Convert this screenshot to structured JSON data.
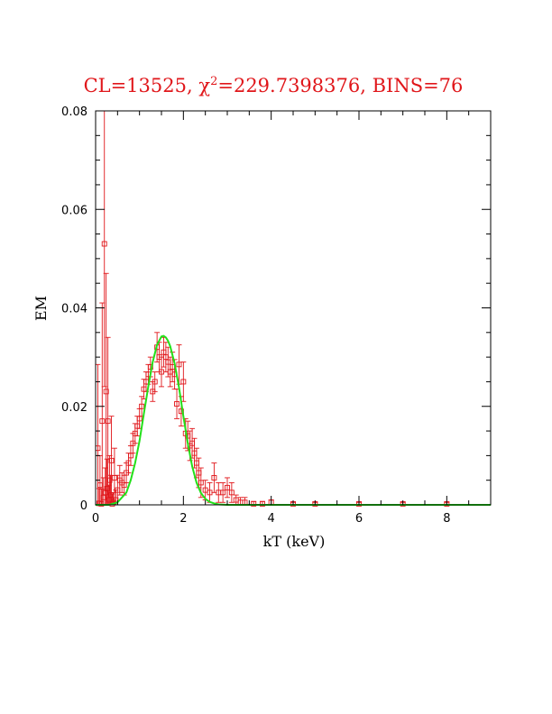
{
  "chart_data": {
    "type": "scatter",
    "title_prefix": "CL=13525, ",
    "title_chi": "χ",
    "title_sup": "2",
    "title_rest": "=229.7398376, BINS=76",
    "xlabel": "kT (keV)",
    "ylabel": "EM",
    "xlim": [
      0,
      9
    ],
    "ylim": [
      0,
      0.08
    ],
    "x_ticks": [
      0,
      2,
      4,
      6,
      8
    ],
    "x_tick_labels": [
      "0",
      "2",
      "4",
      "6",
      "8"
    ],
    "y_ticks": [
      0,
      0.02,
      0.04,
      0.06,
      0.08
    ],
    "y_tick_labels": [
      "0",
      "0.02",
      "0.04",
      "0.06",
      "0.08"
    ],
    "grid": false,
    "colors": {
      "data": "#e0161a",
      "model": "#22e01a",
      "axes": "#000000"
    },
    "series": [
      {
        "kind": "data-with-errors",
        "x": [
          0.05,
          0.08,
          0.1,
          0.13,
          0.15,
          0.18,
          0.2,
          0.22,
          0.24,
          0.26,
          0.28,
          0.3,
          0.32,
          0.34,
          0.36,
          0.38,
          0.4,
          0.43,
          0.46,
          0.5,
          0.55,
          0.6,
          0.65,
          0.7,
          0.75,
          0.8,
          0.85,
          0.9,
          0.95,
          1.0,
          1.05,
          1.1,
          1.15,
          1.2,
          1.25,
          1.3,
          1.35,
          1.4,
          1.45,
          1.5,
          1.55,
          1.6,
          1.65,
          1.7,
          1.75,
          1.8,
          1.85,
          1.9,
          1.95,
          2.0,
          2.05,
          2.1,
          2.15,
          2.2,
          2.25,
          2.3,
          2.35,
          2.4,
          2.5,
          2.6,
          2.7,
          2.8,
          2.9,
          3.0,
          3.1,
          3.2,
          3.3,
          3.4,
          3.6,
          3.8,
          4.0,
          4.5,
          5.0,
          6.0,
          7.0,
          8.0
        ],
        "y": [
          0.0115,
          0.0003,
          0.004,
          0.0002,
          0.017,
          0.0015,
          0.053,
          0.0025,
          0.023,
          0.0033,
          0.017,
          0.001,
          0.005,
          0.002,
          0.009,
          0.0002,
          0.0005,
          0.0055,
          0.001,
          0.003,
          0.005,
          0.0045,
          0.004,
          0.0065,
          0.0085,
          0.01,
          0.0125,
          0.0145,
          0.016,
          0.0175,
          0.02,
          0.0235,
          0.025,
          0.0265,
          0.028,
          0.023,
          0.025,
          0.032,
          0.03,
          0.027,
          0.031,
          0.03,
          0.029,
          0.027,
          0.028,
          0.0265,
          0.0205,
          0.0285,
          0.019,
          0.025,
          0.0145,
          0.014,
          0.012,
          0.0125,
          0.0105,
          0.0085,
          0.0065,
          0.0045,
          0.003,
          0.0025,
          0.0055,
          0.0025,
          0.0025,
          0.0035,
          0.0025,
          0.001,
          0.0005,
          0.0005,
          0.0002,
          0.0002,
          0.0005,
          0.0002,
          0.0002,
          0.0002,
          0.0002,
          0.0002
        ],
        "err": [
          0.017,
          0.003,
          0.006,
          0.003,
          0.024,
          0.004,
          0.029,
          0.005,
          0.024,
          0.006,
          0.017,
          0.003,
          0.005,
          0.004,
          0.009,
          0.002,
          0.002,
          0.006,
          0.002,
          0.003,
          0.003,
          0.002,
          0.002,
          0.002,
          0.002,
          0.002,
          0.002,
          0.002,
          0.002,
          0.002,
          0.002,
          0.002,
          0.002,
          0.002,
          0.002,
          0.002,
          0.002,
          0.003,
          0.003,
          0.003,
          0.003,
          0.003,
          0.003,
          0.003,
          0.003,
          0.003,
          0.003,
          0.004,
          0.003,
          0.004,
          0.003,
          0.003,
          0.003,
          0.003,
          0.003,
          0.003,
          0.003,
          0.003,
          0.002,
          0.002,
          0.003,
          0.002,
          0.002,
          0.002,
          0.002,
          0.001,
          0.001,
          0.001,
          0.0005,
          0.0005,
          0.0005,
          0.0003,
          0.0003,
          0.0003,
          0.0003,
          0.0003
        ]
      },
      {
        "kind": "model-curve",
        "x": [
          0.0,
          0.3,
          0.5,
          0.7,
          0.8,
          0.9,
          1.0,
          1.1,
          1.2,
          1.3,
          1.4,
          1.5,
          1.55,
          1.6,
          1.65,
          1.7,
          1.8,
          1.9,
          2.0,
          2.1,
          2.2,
          2.3,
          2.4,
          2.5,
          2.6,
          2.7,
          2.8,
          2.9,
          3.0,
          3.5,
          9.0
        ],
        "y": [
          0.0,
          0.0,
          0.0005,
          0.0025,
          0.005,
          0.0085,
          0.013,
          0.0185,
          0.024,
          0.029,
          0.0325,
          0.0342,
          0.0343,
          0.034,
          0.0333,
          0.0322,
          0.0287,
          0.0238,
          0.018,
          0.0125,
          0.0078,
          0.0045,
          0.0024,
          0.0012,
          0.0006,
          0.0003,
          0.0001,
          5e-05,
          0.0,
          0.0,
          0.0
        ]
      }
    ]
  }
}
